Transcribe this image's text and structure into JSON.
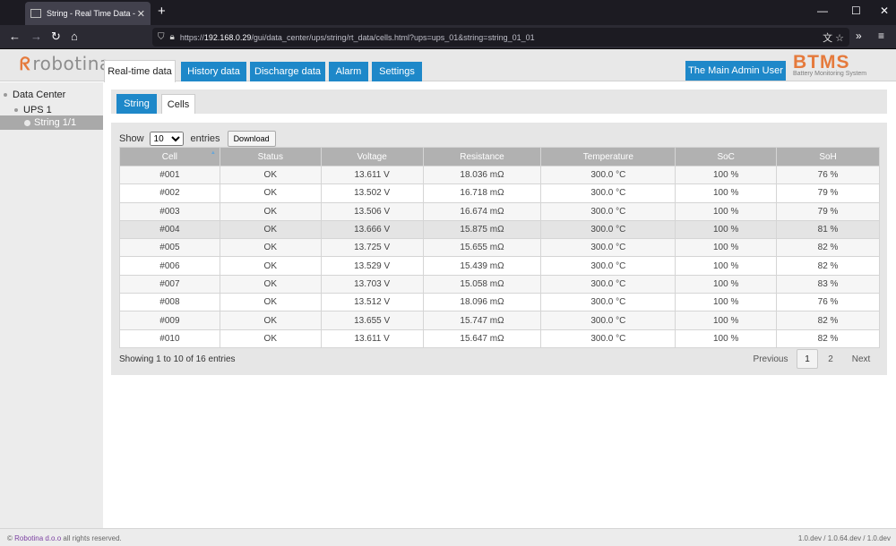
{
  "browser": {
    "tab_title": "String - Real Time Data - Cells",
    "url_prefix": "https://",
    "url_host": "192.168.0.29",
    "url_path": "/gui/data_center/ups/string/rt_data/cells.html?ups=ups_01&string=string_01_01"
  },
  "header": {
    "logo_text": "robotina",
    "tabs": [
      {
        "label": "Real-time data"
      },
      {
        "label": "History data"
      },
      {
        "label": "Discharge data"
      },
      {
        "label": "Alarm"
      },
      {
        "label": "Settings"
      }
    ],
    "user_button": "The Main Admin User",
    "brand_title": "BTMS",
    "brand_subtitle": "Battery Monitoring System"
  },
  "sidebar": {
    "items": [
      {
        "label": "Data Center"
      },
      {
        "label": "UPS 1"
      },
      {
        "label": "String 1/1"
      }
    ]
  },
  "subtabs": [
    {
      "label": "String"
    },
    {
      "label": "Cells"
    }
  ],
  "table_controls": {
    "show_label": "Show",
    "entries_value": "10",
    "entries_label": "entries",
    "download_label": "Download"
  },
  "table": {
    "columns": [
      "Cell",
      "Status",
      "Voltage",
      "Resistance",
      "Temperature",
      "SoC",
      "SoH"
    ],
    "rows": [
      [
        "#001",
        "OK",
        "13.611 V",
        "18.036 mΩ",
        "300.0 °C",
        "100 %",
        "76 %"
      ],
      [
        "#002",
        "OK",
        "13.502 V",
        "16.718 mΩ",
        "300.0 °C",
        "100 %",
        "79 %"
      ],
      [
        "#003",
        "OK",
        "13.506 V",
        "16.674 mΩ",
        "300.0 °C",
        "100 %",
        "79 %"
      ],
      [
        "#004",
        "OK",
        "13.666 V",
        "15.875 mΩ",
        "300.0 °C",
        "100 %",
        "81 %"
      ],
      [
        "#005",
        "OK",
        "13.725 V",
        "15.655 mΩ",
        "300.0 °C",
        "100 %",
        "82 %"
      ],
      [
        "#006",
        "OK",
        "13.529 V",
        "15.439 mΩ",
        "300.0 °C",
        "100 %",
        "82 %"
      ],
      [
        "#007",
        "OK",
        "13.703 V",
        "15.058 mΩ",
        "300.0 °C",
        "100 %",
        "83 %"
      ],
      [
        "#008",
        "OK",
        "13.512 V",
        "18.096 mΩ",
        "300.0 °C",
        "100 %",
        "76 %"
      ],
      [
        "#009",
        "OK",
        "13.655 V",
        "15.747 mΩ",
        "300.0 °C",
        "100 %",
        "82 %"
      ],
      [
        "#010",
        "OK",
        "13.611 V",
        "15.647 mΩ",
        "300.0 °C",
        "100 %",
        "82 %"
      ]
    ]
  },
  "pagination": {
    "info": "Showing 1 to 10 of 16 entries",
    "previous": "Previous",
    "pages": [
      "1",
      "2"
    ],
    "next": "Next"
  },
  "footer": {
    "copyright_symbol": "©",
    "company": "Robotina d.o.o",
    "rights": "all rights reserved.",
    "version": "1.0.dev / 1.0.64.dev / 1.0.dev"
  },
  "colors": {
    "accent_blue": "#1e88c9",
    "brand_orange": "#e57a3c"
  }
}
